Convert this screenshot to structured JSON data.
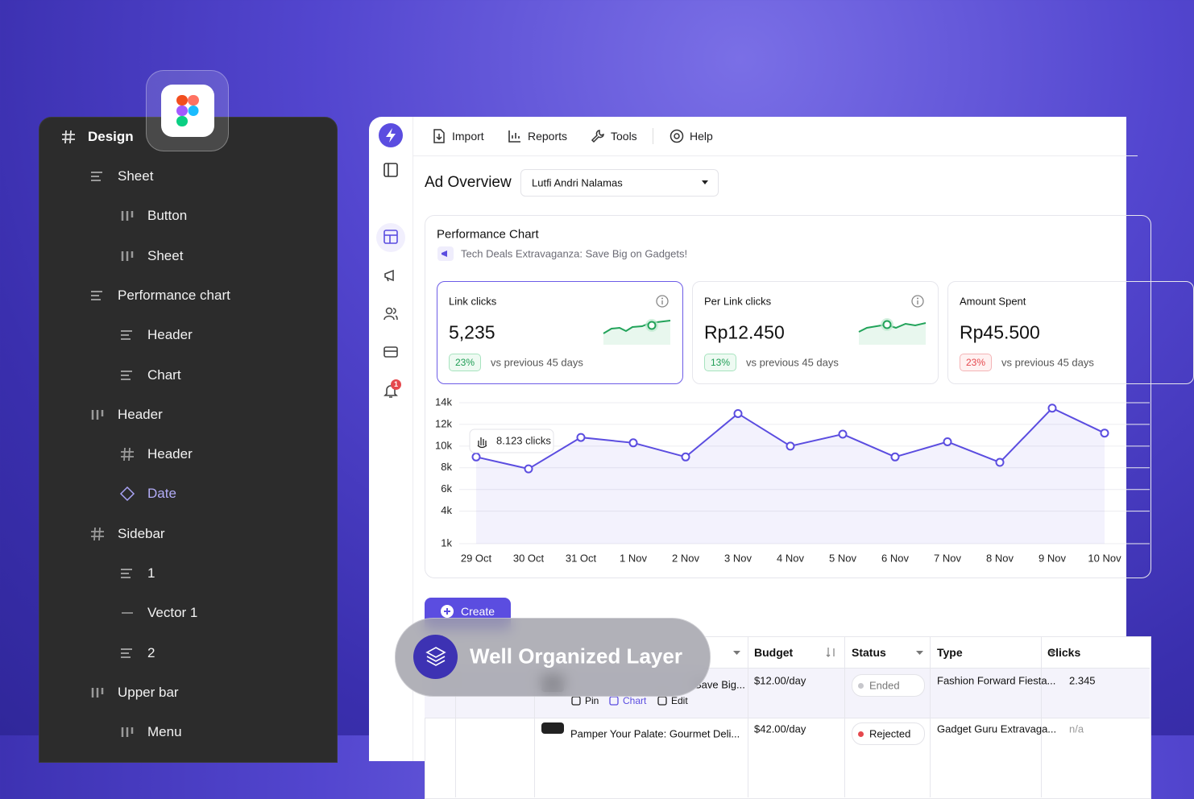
{
  "layers": {
    "title": "Design",
    "items": [
      "Sheet",
      "Button",
      "Sheet",
      "Performance chart",
      "Header",
      "Chart",
      "Header",
      "Header",
      "Date",
      "Sidebar",
      "1",
      "Vector 1",
      "2",
      "Upper bar",
      "Menu"
    ]
  },
  "app": {
    "toolbar": [
      "Import",
      "Reports",
      "Tools",
      "Help"
    ],
    "notifications": "1",
    "title": "Ad Overview",
    "account": "Lutfi Andri Nalamas",
    "performance": {
      "title": "Performance Chart",
      "campaign": "Tech Deals Extravaganza: Save Big on Gadgets!",
      "cards": [
        {
          "label": "Link clicks",
          "value": "5,235",
          "change": "23%",
          "compare": "vs previous 45 days"
        },
        {
          "label": "Per Link clicks",
          "value": "Rp12.450",
          "change": "13%",
          "compare": "vs previous 45 days"
        },
        {
          "label": "Amount Spent",
          "value": "Rp45.500",
          "change": "23%",
          "compare": "vs previous 45 days"
        }
      ]
    },
    "create": "Create",
    "table": {
      "headers": [
        "Budget",
        "Status",
        "Type",
        "Clicks"
      ],
      "rows": [
        {
          "name": "Save Big...",
          "actions": [
            "Pin",
            "Chart",
            "Edit"
          ],
          "budget": "$12.00/day",
          "status": "Ended",
          "type": "Fashion Forward Fiesta...",
          "clicks": "2.345"
        },
        {
          "name": "Pamper Your Palate: Gourmet Deli...",
          "budget": "$42.00/day",
          "status": "Rejected",
          "type": "Gadget Guru Extravaga...",
          "clicks": "n/a"
        }
      ]
    }
  },
  "badge": "Well Organized Layer",
  "chart_data": {
    "type": "line",
    "categories": [
      "29 Oct",
      "30 Oct",
      "31 Oct",
      "1 Nov",
      "2 Nov",
      "3 Nov",
      "4 Nov",
      "5 Nov",
      "6 Nov",
      "7 Nov",
      "8 Nov",
      "9 Nov",
      "10 Nov"
    ],
    "series": [
      {
        "name": "Link clicks",
        "color": "#5b4de0",
        "values": [
          9000,
          7900,
          10800,
          10300,
          9000,
          13000,
          10000,
          11100,
          9000,
          10400,
          8500,
          13500,
          11200
        ]
      }
    ],
    "annotation": "8.123 clicks",
    "ylim": [
      1000,
      14000
    ],
    "yticks": [
      {
        "value": 14000,
        "label": "14k"
      },
      {
        "value": 12000,
        "label": "12k"
      },
      {
        "value": 10000,
        "label": "10k"
      },
      {
        "value": 8000,
        "label": "8k"
      },
      {
        "value": 6000,
        "label": "6k"
      },
      {
        "value": 4000,
        "label": "4k"
      },
      {
        "value": 1000,
        "label": "1k"
      }
    ],
    "grid": true
  }
}
